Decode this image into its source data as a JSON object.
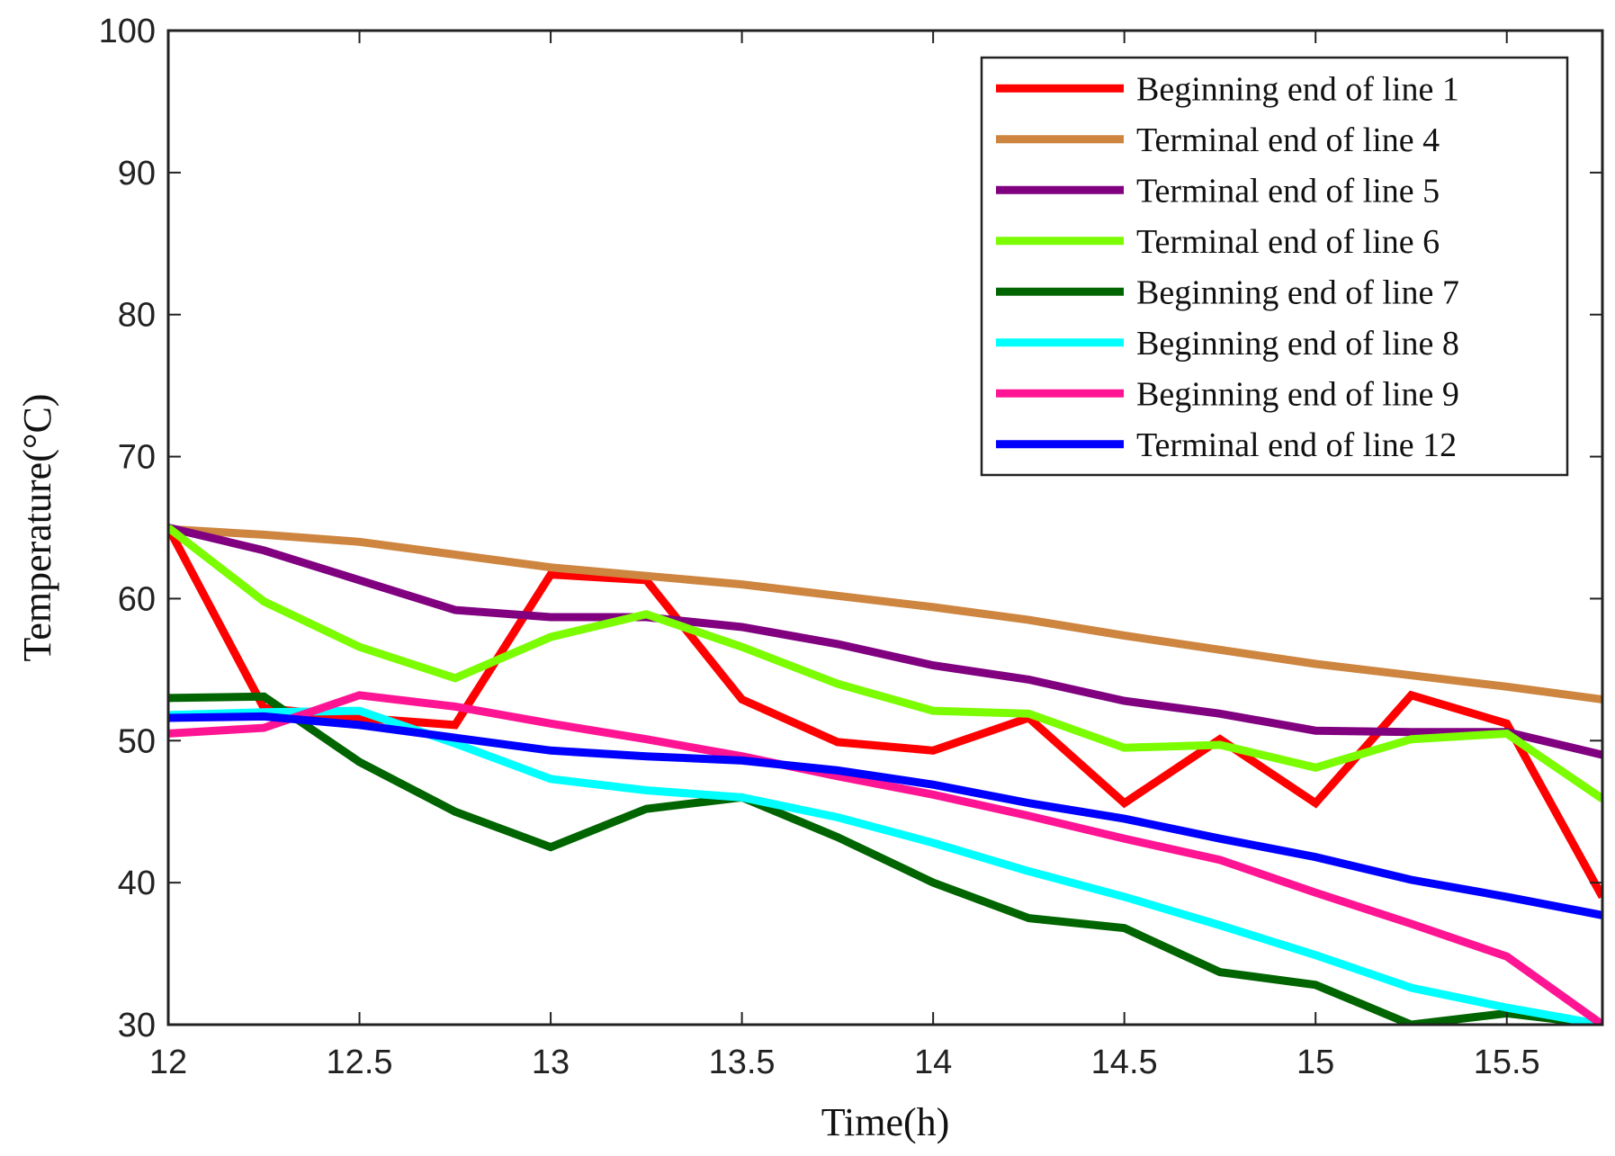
{
  "chart_data": {
    "type": "line",
    "title": "",
    "xlabel": "Time(h)",
    "ylabel": "Temperature(°C)",
    "xlim": [
      12,
      15.75
    ],
    "ylim": [
      30,
      100
    ],
    "xticks": [
      12,
      12.5,
      13,
      13.5,
      14,
      14.5,
      15,
      15.5
    ],
    "xtick_labels": [
      "12",
      "12.5",
      "13",
      "13.5",
      "14",
      "14.5",
      "15",
      "15.5"
    ],
    "yticks": [
      30,
      40,
      50,
      60,
      70,
      80,
      90,
      100
    ],
    "ytick_labels": [
      "30",
      "40",
      "50",
      "60",
      "70",
      "80",
      "90",
      "100"
    ],
    "grid": false,
    "legend_position": "top-right",
    "x": [
      12,
      12.25,
      12.5,
      12.75,
      13,
      13.25,
      13.5,
      13.75,
      14,
      14.25,
      14.5,
      14.75,
      15,
      15.25,
      15.5,
      15.75
    ],
    "series": [
      {
        "name": "Beginning end of line 1",
        "color": "#ff0000",
        "values": [
          65,
          52.3,
          51.6,
          51.1,
          61.7,
          61.3,
          52.9,
          49.9,
          49.3,
          51.6,
          45.6,
          50.1,
          45.6,
          53.2,
          51.2,
          39
        ]
      },
      {
        "name": "Terminal end of line 4",
        "color": "#cd853f",
        "values": [
          64.9,
          64.5,
          64,
          63.1,
          62.2,
          61.6,
          61,
          60.2,
          59.4,
          58.5,
          57.4,
          56.4,
          55.4,
          54.6,
          53.8,
          52.9
        ]
      },
      {
        "name": "Terminal end of line 5",
        "color": "#800080",
        "values": [
          65,
          63.4,
          61.3,
          59.2,
          58.7,
          58.7,
          58,
          56.8,
          55.3,
          54.3,
          52.8,
          51.9,
          50.7,
          50.6,
          50.6,
          49
        ]
      },
      {
        "name": "Terminal end of line 6",
        "color": "#7cfc00",
        "values": [
          65,
          59.8,
          56.6,
          54.4,
          57.3,
          58.9,
          56.6,
          54,
          52.1,
          51.9,
          49.5,
          49.7,
          48.1,
          50.1,
          50.5,
          45.9
        ]
      },
      {
        "name": "Beginning end of line 7",
        "color": "#006400",
        "values": [
          53,
          53.1,
          48.5,
          45,
          42.5,
          45.2,
          46,
          43.2,
          40,
          37.5,
          36.8,
          33.7,
          32.8,
          30,
          30.8,
          30
        ]
      },
      {
        "name": "Beginning end of line 8",
        "color": "#00ffff",
        "values": [
          51.8,
          52,
          52.1,
          49.8,
          47.3,
          46.5,
          46,
          44.6,
          42.8,
          40.8,
          39,
          37,
          34.9,
          32.6,
          31.2,
          30
        ]
      },
      {
        "name": "Beginning end of line 9",
        "color": "#ff1493",
        "values": [
          50.5,
          50.9,
          53.2,
          52.4,
          51.2,
          50.1,
          48.9,
          47.5,
          46.2,
          44.7,
          43.1,
          41.6,
          39.3,
          37.1,
          34.8,
          30
        ]
      },
      {
        "name": "Terminal end of line 12",
        "color": "#0000ff",
        "values": [
          51.6,
          51.7,
          51.1,
          50.2,
          49.3,
          48.9,
          48.6,
          47.9,
          46.9,
          45.6,
          44.5,
          43.1,
          41.8,
          40.2,
          39,
          37.7
        ]
      }
    ]
  }
}
